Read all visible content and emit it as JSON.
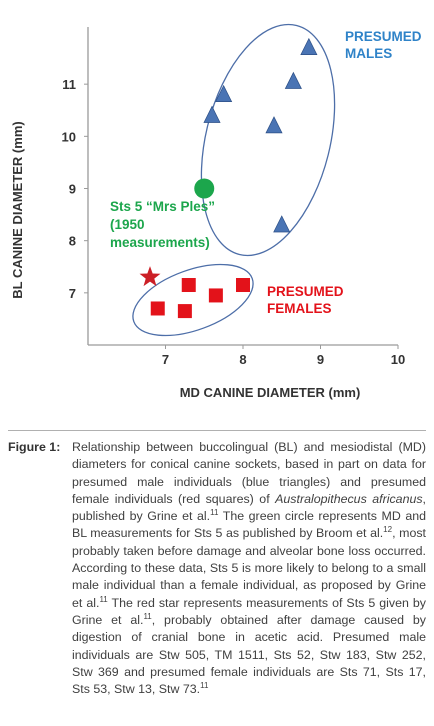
{
  "chart_data": {
    "type": "scatter",
    "xlabel": "MD CANINE DIAMETER (mm)",
    "ylabel": "BL CANINE DIAMETER (mm)",
    "xlim": [
      6,
      10
    ],
    "ylim": [
      6,
      12
    ],
    "x_ticks": [
      "7",
      "8",
      "9",
      "10"
    ],
    "y_ticks": [
      "7",
      "8",
      "9",
      "10",
      "11"
    ],
    "grid": false,
    "series": [
      {
        "name": "Presumed males",
        "marker": "triangle",
        "color": "#4a74b4",
        "points": [
          [
            8.85,
            11.7
          ],
          [
            8.65,
            11.05
          ],
          [
            7.75,
            10.8
          ],
          [
            7.6,
            10.4
          ],
          [
            8.4,
            10.2
          ],
          [
            8.5,
            8.3
          ]
        ]
      },
      {
        "name": "Presumed females",
        "marker": "square",
        "color": "#e3121a",
        "points": [
          [
            6.9,
            6.7
          ],
          [
            7.3,
            7.15
          ],
          [
            7.65,
            6.95
          ],
          [
            8.0,
            7.15
          ],
          [
            7.25,
            6.65
          ]
        ]
      },
      {
        "name": "Sts 5 (1950 measurements)",
        "marker": "circle",
        "color": "#1ca64c",
        "points": [
          [
            7.5,
            9.0
          ]
        ]
      },
      {
        "name": "Sts 5 (Grine et al.)",
        "marker": "star",
        "color": "#cc1f26",
        "points": [
          [
            6.8,
            7.3
          ]
        ]
      }
    ],
    "annotations": [
      {
        "lines": [
          "PRESUMED",
          "MALES"
        ],
        "color": "#2f83c8"
      },
      {
        "lines": [
          "PRESUMED",
          "FEMALES"
        ],
        "color": "#e3121a"
      },
      {
        "lines": [
          "Sts 5 “Mrs Ples”",
          "(1950",
          "measurements)"
        ],
        "color": "#1ca64c"
      }
    ],
    "colors": {
      "axis": "#9a9a9a",
      "ellipse": "#4d6ea8",
      "text": "#333333"
    }
  },
  "caption": {
    "label": "Figure 1:",
    "segments": [
      {
        "t": "Relationship between buccolingual (BL) and mesiodistal (MD) diameters for conical canine sockets, based in part on data for presumed male individuals (blue triangles) and presumed female individuals (red squares) of "
      },
      {
        "t": "Australopithecus africanus",
        "i": true
      },
      {
        "t": ", published by Grine et al."
      },
      {
        "t": "11",
        "sup": true
      },
      {
        "t": " The green circle represents MD and BL measurements for Sts 5 as published by Broom et al."
      },
      {
        "t": "12",
        "sup": true
      },
      {
        "t": ", most probably taken before damage and alveolar bone loss occurred. According to these data, Sts 5 is more likely to belong to a small male individual than a female individual, as proposed by Grine et al."
      },
      {
        "t": "11",
        "sup": true
      },
      {
        "t": " The red star represents measurements of Sts 5 given by Grine et al."
      },
      {
        "t": "11",
        "sup": true
      },
      {
        "t": ", probably obtained after damage caused by digestion of cranial bone in acetic acid. Presumed male individuals are Stw 505, TM 1511, Sts 52, Stw 183, Stw 252, Stw 369 and presumed female individuals are Sts 71, Sts 17, Sts 53, Stw 13, Stw 73."
      },
      {
        "t": "11",
        "sup": true
      }
    ]
  }
}
